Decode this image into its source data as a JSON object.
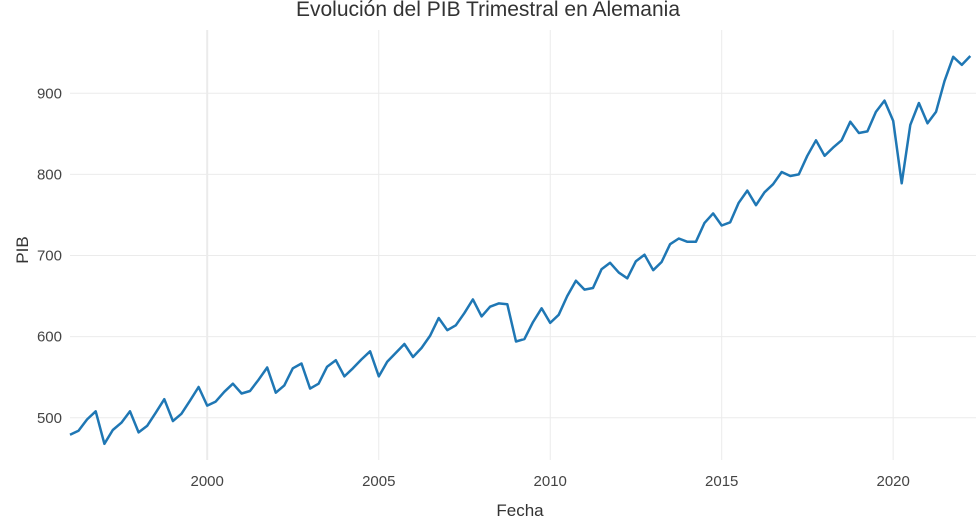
{
  "chart_data": {
    "type": "line",
    "title": "Evolución del PIB Trimestral en Alemania",
    "xlabel": "Fecha",
    "ylabel": "PIB",
    "x_ticks": [
      "2000",
      "2005",
      "2010",
      "2015",
      "2020"
    ],
    "y_ticks": [
      "500",
      "600",
      "700",
      "800",
      "900"
    ],
    "ylim": [
      448,
      978
    ],
    "xlim": [
      "1996-01-01",
      "2022-06-01"
    ],
    "grid": true,
    "line_color": "#1f77b4",
    "series": [
      {
        "x": [
          "1996-01-01",
          "1996-04-01",
          "1996-07-01",
          "1996-10-01",
          "1997-01-01",
          "1997-04-01",
          "1997-07-01",
          "1997-10-01",
          "1998-01-01",
          "1998-04-01",
          "1998-07-01",
          "1998-10-01",
          "1999-01-01",
          "1999-04-01",
          "1999-07-01",
          "1999-10-01",
          "2000-01-01",
          "2000-04-01",
          "2000-07-01",
          "2000-10-01",
          "2001-01-01",
          "2001-04-01",
          "2001-07-01",
          "2001-10-01",
          "2002-01-01",
          "2002-04-01",
          "2002-07-01",
          "2002-10-01",
          "2003-01-01",
          "2003-04-01",
          "2003-07-01",
          "2003-10-01",
          "2004-01-01",
          "2004-04-01",
          "2004-07-01",
          "2004-10-01",
          "2005-01-01",
          "2005-04-01",
          "2005-07-01",
          "2005-10-01",
          "2006-01-01",
          "2006-04-01",
          "2006-07-01",
          "2006-10-01",
          "2007-01-01",
          "2007-04-01",
          "2007-07-01",
          "2007-10-01",
          "2008-01-01",
          "2008-04-01",
          "2008-07-01",
          "2008-10-01",
          "2009-01-01",
          "2009-04-01",
          "2009-07-01",
          "2009-10-01",
          "2010-01-01",
          "2010-04-01",
          "2010-07-01",
          "2010-10-01",
          "2011-01-01",
          "2011-04-01",
          "2011-07-01",
          "2011-10-01",
          "2012-01-01",
          "2012-04-01",
          "2012-07-01",
          "2012-10-01",
          "2013-01-01",
          "2013-04-01",
          "2013-07-01",
          "2013-10-01",
          "2014-01-01",
          "2014-04-01",
          "2014-07-01",
          "2014-10-01",
          "2015-01-01",
          "2015-04-01",
          "2015-07-01",
          "2015-10-01",
          "2016-01-01",
          "2016-04-01",
          "2016-07-01",
          "2016-10-01",
          "2017-01-01",
          "2017-04-01",
          "2017-07-01",
          "2017-10-01",
          "2018-01-01",
          "2018-04-01",
          "2018-07-01",
          "2018-10-01",
          "2019-01-01",
          "2019-04-01",
          "2019-07-01",
          "2019-10-01",
          "2020-01-01",
          "2020-04-01",
          "2020-07-01",
          "2020-10-01",
          "2021-01-01",
          "2021-04-01",
          "2021-07-01",
          "2021-10-01",
          "2022-01-01",
          "2022-04-01"
        ],
        "y": [
          479,
          484,
          498,
          508,
          468,
          485,
          494,
          508,
          482,
          490,
          506,
          523,
          496,
          505,
          521,
          538,
          515,
          520,
          532,
          542,
          530,
          533,
          547,
          562,
          531,
          540,
          561,
          567,
          536,
          542,
          563,
          571,
          551,
          561,
          572,
          582,
          551,
          569,
          580,
          591,
          575,
          586,
          601,
          623,
          608,
          614,
          629,
          646,
          625,
          637,
          641,
          640,
          594,
          597,
          618,
          635,
          617,
          627,
          650,
          669,
          658,
          660,
          683,
          691,
          679,
          672,
          693,
          701,
          682,
          692,
          714,
          721,
          717,
          717,
          740,
          752,
          737,
          741,
          765,
          780,
          762,
          778,
          788,
          803,
          798,
          800,
          823,
          842,
          823,
          833,
          842,
          865,
          851,
          853,
          877,
          891,
          866,
          789,
          861,
          888,
          863,
          877,
          915,
          945,
          935,
          946
        ]
      }
    ]
  }
}
